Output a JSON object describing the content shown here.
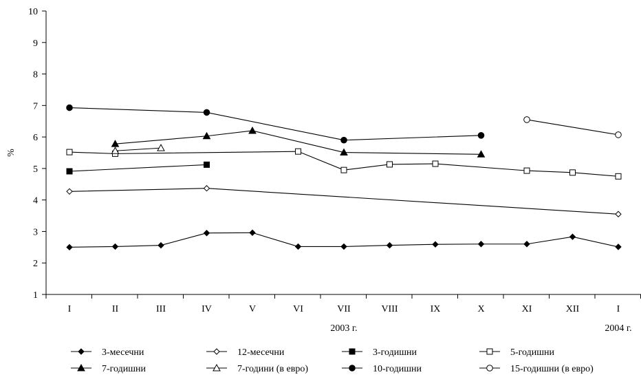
{
  "chart_data": {
    "type": "line",
    "title": "",
    "ylabel": "%",
    "xlabel": "",
    "ylim": [
      1,
      10
    ],
    "yticks": [
      1,
      2,
      3,
      4,
      5,
      6,
      7,
      8,
      9,
      10
    ],
    "categories": [
      "I",
      "II",
      "III",
      "IV",
      "V",
      "VI",
      "VII",
      "VIII",
      "IX",
      "X",
      "XI",
      "XII",
      "I"
    ],
    "year_labels": [
      {
        "text": "2003 г.",
        "under_index": 6
      },
      {
        "text": "2004 г.",
        "under_index": 12
      }
    ],
    "grid": false,
    "legend_position": "bottom",
    "series": [
      {
        "name": "3-месечни",
        "marker": "diamond-filled",
        "values": [
          2.5,
          2.52,
          2.56,
          2.95,
          2.96,
          2.52,
          2.52,
          2.56,
          2.59,
          2.6,
          2.6,
          2.83,
          2.51
        ]
      },
      {
        "name": "12-месечни",
        "marker": "diamond-open",
        "values": [
          4.27,
          null,
          null,
          4.37,
          null,
          null,
          null,
          null,
          null,
          null,
          null,
          null,
          3.55
        ]
      },
      {
        "name": "3-годишни",
        "marker": "square-filled",
        "values": [
          4.91,
          null,
          null,
          5.12,
          null,
          null,
          null,
          null,
          null,
          null,
          null,
          null,
          null
        ]
      },
      {
        "name": "5-годишни",
        "marker": "square-open",
        "values": [
          5.52,
          5.47,
          null,
          null,
          null,
          5.54,
          4.95,
          5.13,
          5.15,
          null,
          4.93,
          4.87,
          4.75
        ]
      },
      {
        "name": "7-годишни",
        "marker": "triangle-filled",
        "values": [
          null,
          5.78,
          null,
          6.03,
          6.2,
          null,
          5.51,
          null,
          null,
          5.45,
          null,
          null,
          null
        ]
      },
      {
        "name": "7-години (в евро)",
        "marker": "triangle-open",
        "values": [
          null,
          5.56,
          5.65,
          null,
          null,
          null,
          null,
          null,
          null,
          null,
          null,
          null,
          null
        ]
      },
      {
        "name": "10-годишни",
        "marker": "circle-filled",
        "values": [
          6.93,
          null,
          null,
          6.78,
          null,
          null,
          5.9,
          null,
          null,
          6.05,
          null,
          null,
          null
        ]
      },
      {
        "name": "15-годишни (в евро)",
        "marker": "circle-open",
        "values": [
          null,
          null,
          null,
          null,
          null,
          null,
          null,
          null,
          null,
          null,
          6.55,
          null,
          6.07
        ]
      }
    ]
  }
}
